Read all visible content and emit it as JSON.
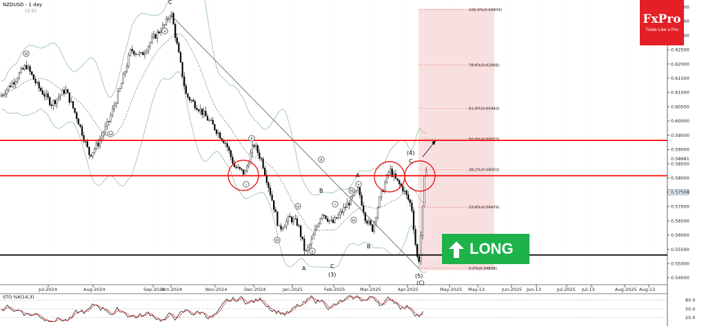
{
  "header": {
    "symbol_label": "NZDUSD - 1 day",
    "sub_label": "(2.0)"
  },
  "logo": {
    "brand": "FxPro",
    "tagline": "Trade Like a Pro"
  },
  "signal": {
    "label": "LONG",
    "color": "#1db24a"
  },
  "colors": {
    "candle": "#000000",
    "band": "#8fbf99",
    "ma": "#555555",
    "resistance": "#ff0000",
    "support": "#000000",
    "fib_zone": "#f7d6d6"
  },
  "chart_data": {
    "type": "candlestick",
    "price_axis": {
      "min": 0.5445,
      "max": 0.6405,
      "ticks": [
        "0.64000",
        "0.63500",
        "0.63000",
        "0.62500",
        "0.62000",
        "0.61500",
        "0.61000",
        "0.60500",
        "0.60000",
        "0.59500",
        "0.59000",
        "0.58500",
        "0.58000",
        "0.57500",
        "0.57000",
        "0.56500",
        "0.56000",
        "0.55500",
        "0.55000",
        "0.54500"
      ],
      "current_price": "0.57508",
      "marker_price": "0.58681"
    },
    "time_axis": {
      "labels": [
        "Jul-2024",
        "Aug-2024",
        "Sep-2024",
        "Oct-2024",
        "Nov-2024",
        "Dec-2024",
        "Jan-2025",
        "Feb-2025",
        "Mar-2025",
        "Apr-2025",
        "May-2025",
        "May-13",
        "Jun-2025",
        "Jun-13",
        "Jul-2025",
        "Jul-13",
        "Aug-2025",
        "Aug-13"
      ]
    },
    "levels": [
      {
        "price": 0.5932,
        "kind": "resistance"
      },
      {
        "price": 0.5808,
        "kind": "resistance"
      },
      {
        "price": 0.553,
        "kind": "support"
      }
    ],
    "fibonacci": [
      {
        "label": "100.0%(0.63909)",
        "price": 0.63909
      },
      {
        "label": "78.6%(0.61968)",
        "price": 0.61968
      },
      {
        "label": "61.8%(0.60444)",
        "price": 0.60444
      },
      {
        "label": "50.0%(0.59373)",
        "price": 0.59373
      },
      {
        "label": "38.2%(0.58303)",
        "price": 0.58303
      },
      {
        "label": "23.6%(0.56979)",
        "price": 0.56979
      },
      {
        "label": "0.0%(0.54838)",
        "price": 0.54838
      }
    ],
    "wave_labels": [
      "C",
      "A",
      "B",
      "C",
      "(3)",
      "A",
      "B",
      "(4)",
      "C",
      "(5)",
      "(C)"
    ],
    "roman_labels": [
      "iii",
      "iv",
      "v",
      "ii",
      "i",
      "iii",
      "iv",
      "v",
      "i",
      "ii",
      "iii",
      "iv",
      "v"
    ],
    "stochastic": {
      "label": "STO %K(14,3)",
      "levels": [
        "80.0",
        "50.0",
        "20.0"
      ]
    }
  }
}
